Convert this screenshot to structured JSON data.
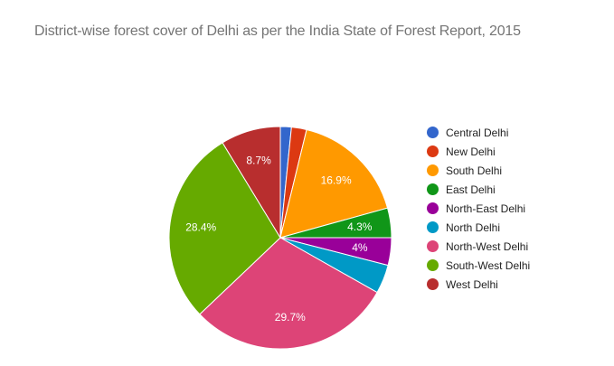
{
  "chart_data": {
    "type": "pie",
    "title": "District-wise forest cover of Delhi as per the India State of Forest Report, 2015",
    "legend_position": "right",
    "categories": [
      "Central Delhi",
      "New Delhi",
      "South Delhi",
      "East Delhi",
      "North-East Delhi",
      "North Delhi",
      "North-West Delhi",
      "South-West Delhi",
      "West Delhi"
    ],
    "values": [
      1.6,
      2.2,
      16.9,
      4.3,
      4.0,
      4.2,
      29.7,
      28.4,
      8.7
    ],
    "labels": [
      "",
      "",
      "16.9%",
      "4.3%",
      "4%",
      "",
      "29.7%",
      "28.4%",
      "8.7%"
    ],
    "colors": [
      "#3366cc",
      "#dc3912",
      "#ff9900",
      "#109618",
      "#990099",
      "#0099c6",
      "#dd4477",
      "#66aa00",
      "#b82e2e"
    ]
  }
}
